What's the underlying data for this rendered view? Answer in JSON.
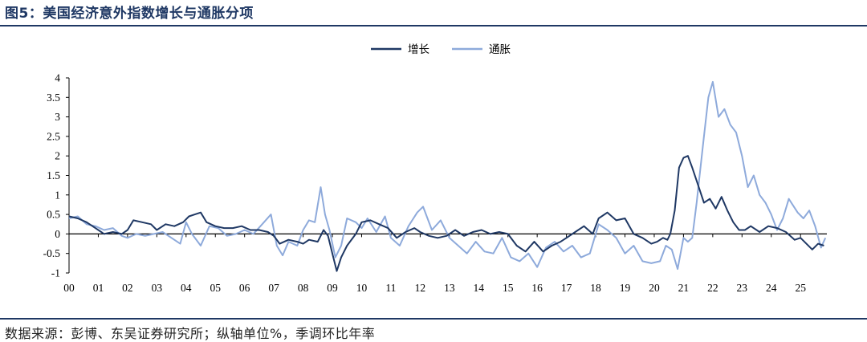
{
  "figure": {
    "title": "图5：美国经济意外指数增长与通胀分项",
    "source": "数据来源：彭博、东吴证券研究所；纵轴单位%，季调环比年率"
  },
  "colors": {
    "growth": "#1f3864",
    "inflation": "#8eaadb",
    "axis": "#000000",
    "rule": "#1f3864"
  },
  "chart_data": {
    "type": "line",
    "x_label_list": [
      "00",
      "01",
      "02",
      "03",
      "04",
      "05",
      "06",
      "07",
      "08",
      "09",
      "10",
      "11",
      "12",
      "13",
      "14",
      "15",
      "16",
      "17",
      "18",
      "19",
      "20",
      "21",
      "22",
      "23",
      "24",
      "25"
    ],
    "yticks": [
      "4",
      "3.5",
      "3",
      "2.5",
      "2",
      "1.5",
      "1",
      "0.5",
      "0",
      "-0.5",
      "-1"
    ],
    "ylim": [
      -1,
      4
    ],
    "xlim": [
      2000,
      2025.9
    ],
    "legend_position": "top-center",
    "series": [
      {
        "name": "增长",
        "color": "#1f3864",
        "x": [
          2000.0,
          2000.3,
          2000.6,
          2000.9,
          2001.2,
          2001.5,
          2001.8,
          2002.0,
          2002.2,
          2002.5,
          2002.8,
          2003.0,
          2003.3,
          2003.6,
          2003.9,
          2004.1,
          2004.3,
          2004.5,
          2004.7,
          2005.0,
          2005.3,
          2005.6,
          2005.9,
          2006.2,
          2006.5,
          2006.8,
          2007.0,
          2007.2,
          2007.5,
          2007.8,
          2008.0,
          2008.2,
          2008.5,
          2008.7,
          2008.85,
          2009.0,
          2009.15,
          2009.3,
          2009.5,
          2009.8,
          2010.0,
          2010.3,
          2010.6,
          2010.9,
          2011.2,
          2011.5,
          2011.8,
          2012.0,
          2012.3,
          2012.6,
          2012.9,
          2013.2,
          2013.5,
          2013.8,
          2014.1,
          2014.4,
          2014.7,
          2015.0,
          2015.3,
          2015.6,
          2015.9,
          2016.2,
          2016.5,
          2016.8,
          2017.0,
          2017.3,
          2017.6,
          2017.9,
          2018.1,
          2018.4,
          2018.7,
          2019.0,
          2019.3,
          2019.6,
          2019.9,
          2020.1,
          2020.3,
          2020.45,
          2020.55,
          2020.7,
          2020.85,
          2021.0,
          2021.15,
          2021.3,
          2021.5,
          2021.7,
          2021.9,
          2022.1,
          2022.3,
          2022.5,
          2022.7,
          2022.9,
          2023.1,
          2023.3,
          2023.6,
          2023.9,
          2024.2,
          2024.5,
          2024.8,
          2025.0,
          2025.2,
          2025.4,
          2025.6,
          2025.8
        ],
        "y": [
          0.45,
          0.4,
          0.3,
          0.15,
          0.0,
          0.05,
          0.0,
          0.1,
          0.35,
          0.3,
          0.25,
          0.1,
          0.25,
          0.2,
          0.3,
          0.45,
          0.5,
          0.55,
          0.3,
          0.2,
          0.15,
          0.15,
          0.2,
          0.1,
          0.1,
          0.05,
          -0.05,
          -0.25,
          -0.15,
          -0.2,
          -0.25,
          -0.15,
          -0.2,
          0.1,
          -0.05,
          -0.5,
          -0.95,
          -0.6,
          -0.3,
          0.0,
          0.3,
          0.35,
          0.25,
          0.15,
          -0.1,
          0.05,
          0.15,
          0.05,
          -0.05,
          -0.1,
          -0.05,
          0.1,
          -0.05,
          0.05,
          0.1,
          0.0,
          0.05,
          0.0,
          -0.3,
          -0.45,
          -0.2,
          -0.45,
          -0.3,
          -0.2,
          -0.1,
          0.05,
          0.2,
          0.0,
          0.4,
          0.55,
          0.35,
          0.4,
          0.0,
          -0.1,
          -0.25,
          -0.2,
          -0.1,
          -0.15,
          0.0,
          0.6,
          1.7,
          1.95,
          2.0,
          1.7,
          1.25,
          0.8,
          0.9,
          0.65,
          0.95,
          0.6,
          0.3,
          0.1,
          0.1,
          0.2,
          0.05,
          0.2,
          0.15,
          0.05,
          -0.15,
          -0.1,
          -0.25,
          -0.4,
          -0.25,
          -0.3
        ]
      },
      {
        "name": "通胀",
        "color": "#8eaadb",
        "x": [
          2000.0,
          2000.3,
          2000.6,
          2000.9,
          2001.2,
          2001.5,
          2001.8,
          2002.0,
          2002.3,
          2002.6,
          2002.9,
          2003.2,
          2003.5,
          2003.8,
          2004.0,
          2004.2,
          2004.5,
          2004.8,
          2005.1,
          2005.4,
          2005.7,
          2006.0,
          2006.3,
          2006.6,
          2006.9,
          2007.1,
          2007.3,
          2007.5,
          2007.8,
          2008.0,
          2008.2,
          2008.4,
          2008.6,
          2008.75,
          2008.9,
          2009.1,
          2009.3,
          2009.5,
          2009.8,
          2010.0,
          2010.2,
          2010.5,
          2010.8,
          2011.0,
          2011.3,
          2011.6,
          2011.9,
          2012.1,
          2012.4,
          2012.7,
          2013.0,
          2013.3,
          2013.6,
          2013.9,
          2014.2,
          2014.5,
          2014.8,
          2015.1,
          2015.4,
          2015.7,
          2016.0,
          2016.3,
          2016.6,
          2016.9,
          2017.2,
          2017.5,
          2017.8,
          2018.1,
          2018.4,
          2018.7,
          2019.0,
          2019.3,
          2019.6,
          2019.9,
          2020.2,
          2020.4,
          2020.6,
          2020.8,
          2021.0,
          2021.15,
          2021.3,
          2021.45,
          2021.55,
          2021.7,
          2021.85,
          2022.0,
          2022.2,
          2022.4,
          2022.6,
          2022.8,
          2023.0,
          2023.2,
          2023.4,
          2023.6,
          2023.8,
          2024.0,
          2024.2,
          2024.4,
          2024.6,
          2024.9,
          2025.1,
          2025.3,
          2025.5,
          2025.7,
          2025.85
        ],
        "y": [
          0.4,
          0.45,
          0.25,
          0.2,
          0.1,
          0.15,
          -0.05,
          -0.1,
          0.0,
          -0.05,
          0.0,
          0.05,
          -0.1,
          -0.25,
          0.3,
          0.0,
          -0.3,
          0.2,
          0.15,
          -0.05,
          0.0,
          0.1,
          0.0,
          0.25,
          0.5,
          -0.3,
          -0.55,
          -0.2,
          -0.3,
          0.1,
          0.35,
          0.3,
          1.2,
          0.5,
          0.1,
          -0.6,
          -0.3,
          0.4,
          0.3,
          0.15,
          0.4,
          0.05,
          0.45,
          -0.1,
          -0.3,
          0.2,
          0.55,
          0.7,
          0.1,
          0.35,
          -0.1,
          -0.3,
          -0.5,
          -0.2,
          -0.45,
          -0.5,
          -0.1,
          -0.6,
          -0.7,
          -0.5,
          -0.85,
          -0.35,
          -0.2,
          -0.45,
          -0.3,
          -0.6,
          -0.5,
          0.25,
          0.1,
          -0.1,
          -0.5,
          -0.3,
          -0.7,
          -0.75,
          -0.7,
          -0.3,
          -0.4,
          -0.9,
          -0.1,
          -0.2,
          -0.1,
          0.8,
          1.5,
          2.5,
          3.5,
          3.9,
          3.0,
          3.2,
          2.8,
          2.6,
          2.0,
          1.2,
          1.5,
          1.0,
          0.8,
          0.5,
          0.1,
          0.4,
          0.9,
          0.55,
          0.4,
          0.6,
          0.2,
          -0.35,
          -0.1
        ]
      }
    ]
  }
}
